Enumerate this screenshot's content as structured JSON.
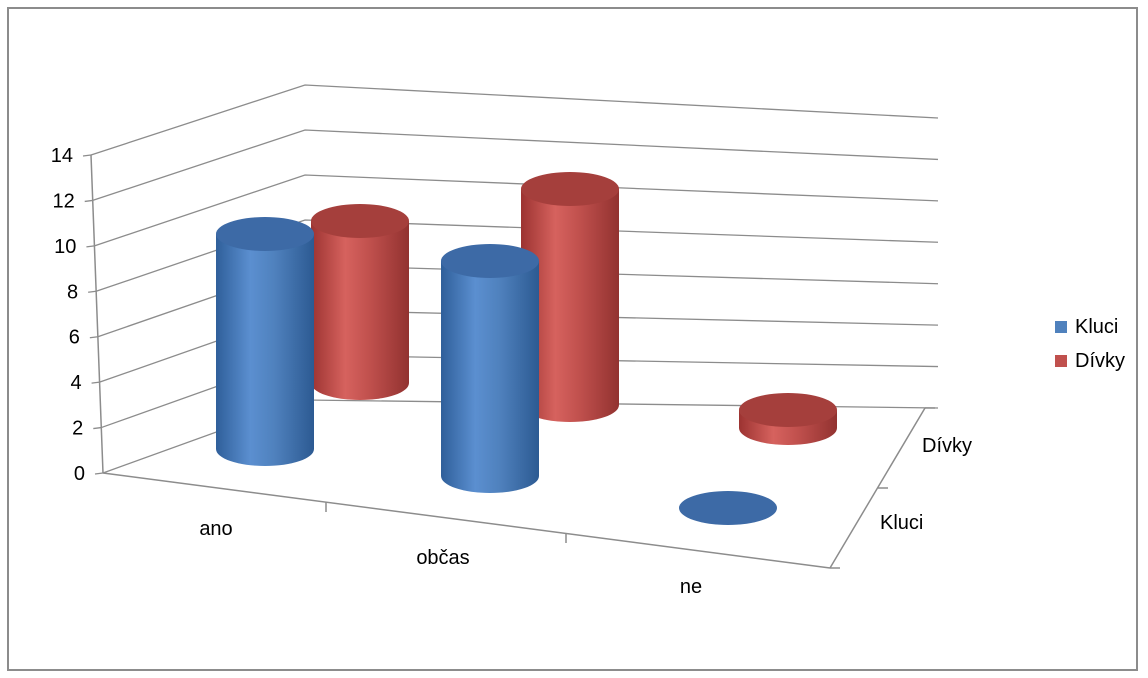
{
  "chart_data": {
    "type": "bar",
    "style": "3d-cylinder",
    "categories": [
      "ano",
      "občas",
      "ne"
    ],
    "depth_categories": [
      "Kluci",
      "Dívky"
    ],
    "series": [
      {
        "name": "Kluci",
        "values": [
          10,
          10,
          0
        ],
        "color": "#4f81bd"
      },
      {
        "name": "Dívky",
        "values": [
          9,
          12,
          1
        ],
        "color": "#c0504d"
      }
    ],
    "y_ticks": [
      "0",
      "2",
      "4",
      "6",
      "8",
      "10",
      "12",
      "14"
    ],
    "ylim": [
      0,
      14
    ],
    "grid": true,
    "legend_position": "right"
  }
}
